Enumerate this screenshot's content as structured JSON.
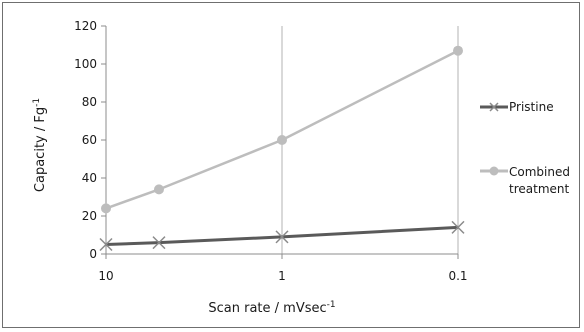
{
  "chart_data": {
    "type": "line",
    "x_scale": "log",
    "x_reversed": true,
    "x": [
      10,
      5,
      1,
      0.1
    ],
    "x_tick_labels": [
      "10",
      "1",
      "0.1"
    ],
    "x_ticks": [
      10,
      1,
      0.1
    ],
    "xlabel": "Scan rate / mVsec",
    "xlabel_sup": "-1",
    "ylabel": "Capacity / Fg",
    "ylabel_sup": "-1",
    "ylim": [
      0,
      120
    ],
    "y_ticks": [
      0,
      20,
      40,
      60,
      80,
      100,
      120
    ],
    "grid": "vertical",
    "legend_placement": "right",
    "series": [
      {
        "name": "Pristine",
        "marker": "x",
        "color": "#5a5a5a",
        "values": [
          5,
          6,
          9,
          14
        ]
      },
      {
        "name": "Combined treatment",
        "marker": "circle",
        "color": "#bdbdbd",
        "values": [
          24,
          34,
          60,
          107
        ]
      }
    ]
  }
}
